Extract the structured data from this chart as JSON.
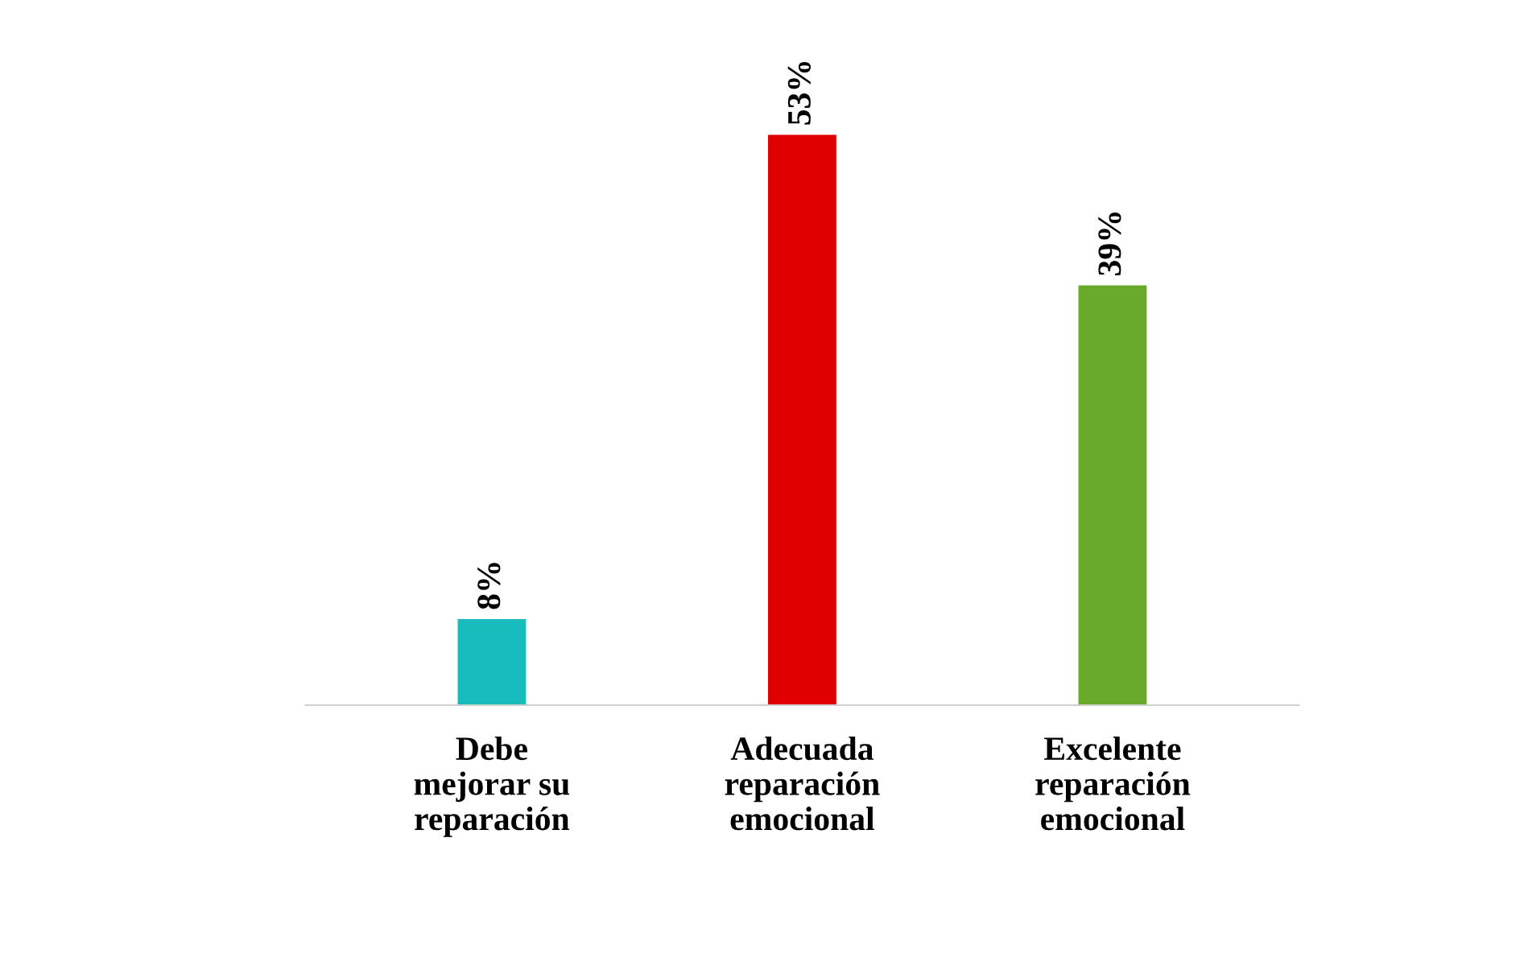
{
  "chart_data": {
    "type": "bar",
    "categories": [
      "Debe\nmejorar su\nreparación",
      "Adecuada\nreparación\nemocional",
      "Excelente\nreparación\nemocional"
    ],
    "values": [
      8,
      53,
      39
    ],
    "colors": [
      "#19bcbc",
      "#e00000",
      "#6aaa2a"
    ],
    "value_labels": [
      "8%",
      "53%",
      "39%"
    ],
    "grid": false,
    "legend": false
  }
}
